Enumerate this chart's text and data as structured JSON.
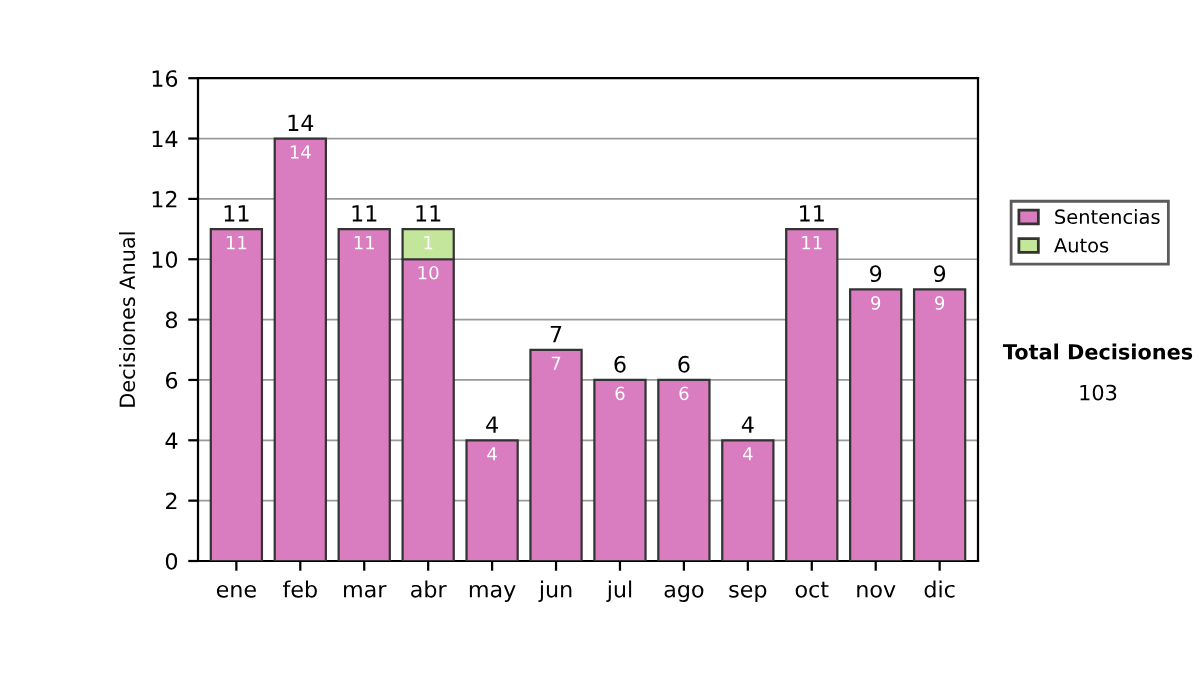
{
  "chart_data": {
    "type": "bar",
    "ylabel": "Decisiones Anual",
    "categories": [
      "ene",
      "feb",
      "mar",
      "abr",
      "may",
      "jun",
      "jul",
      "ago",
      "sep",
      "oct",
      "nov",
      "dic"
    ],
    "series": [
      {
        "name": "Sentencias",
        "color": "#d97cc0",
        "values": [
          11,
          14,
          11,
          10,
          4,
          7,
          6,
          6,
          4,
          11,
          9,
          9
        ]
      },
      {
        "name": "Autos",
        "color": "#c4e69a",
        "values": [
          null,
          null,
          null,
          1,
          null,
          null,
          null,
          null,
          null,
          null,
          null,
          null
        ]
      }
    ],
    "stacked": true,
    "data_labels": true,
    "totals": [
      "11",
      "14",
      "11",
      "11",
      "4",
      "7",
      "6",
      "6",
      "4",
      "11",
      "9",
      "9"
    ],
    "ylim": [
      0,
      16
    ],
    "yticks": [
      0,
      2,
      4,
      6,
      8,
      10,
      12,
      14,
      16
    ],
    "grid": "y",
    "legend": "right",
    "annotations": [
      "Total Decisiones",
      "103"
    ]
  }
}
